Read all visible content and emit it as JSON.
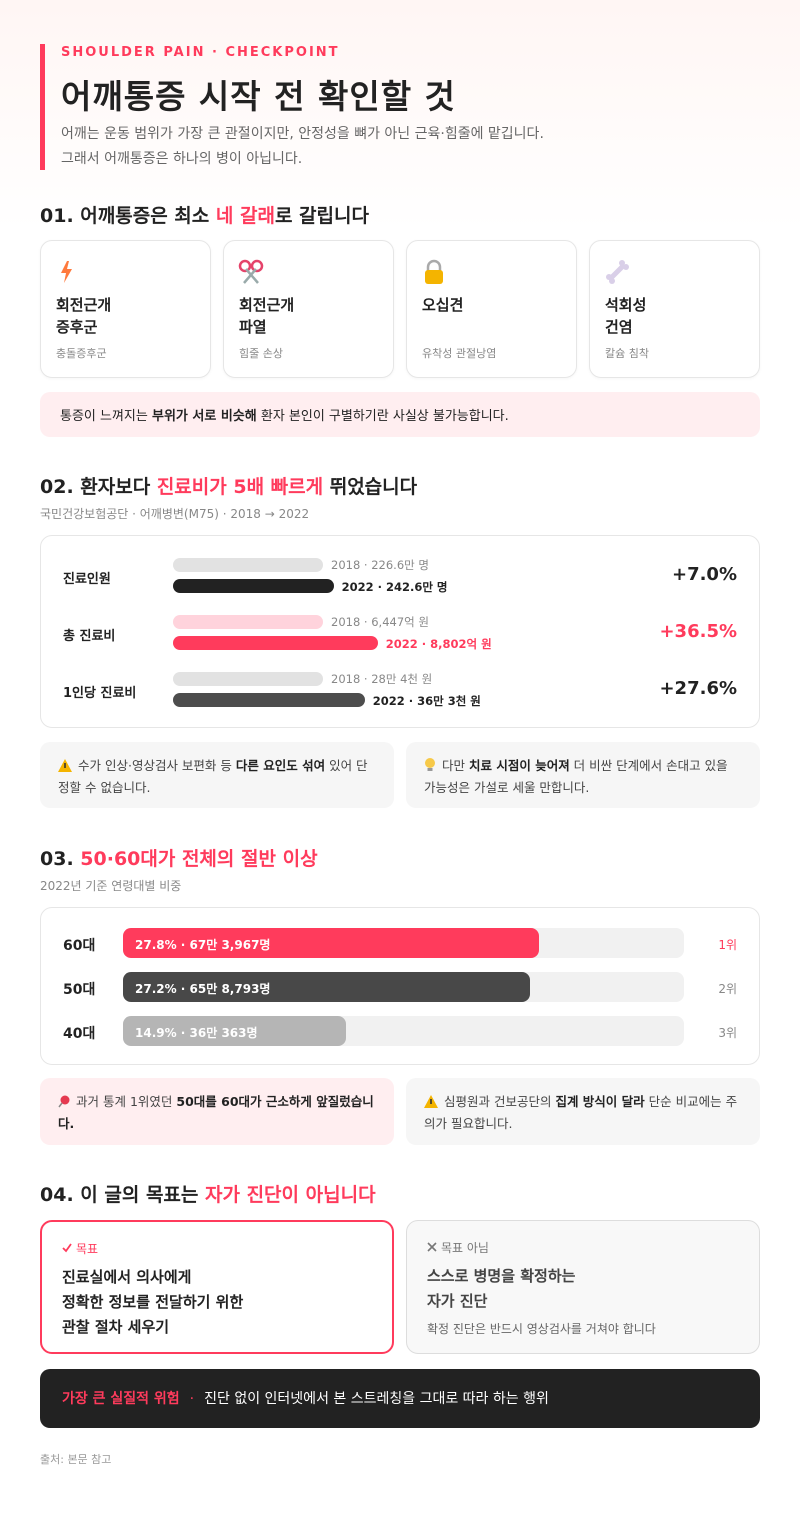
{
  "header": {
    "kicker": "SHOULDER PAIN · CHECKPOINT",
    "title": "어깨통증 시작 전 확인할 것",
    "description": [
      "어깨는 운동 범위가 가장 큰 관절이지만, 안정성을 뼈가 아닌 근육·힘줄에 맡깁니다.",
      "그래서 어깨통증은 하나의 병이 아닙니다."
    ]
  },
  "section1": {
    "heading": [
      "01. 어깨통증은 최소 ",
      "네 갈래",
      "로 갈립니다"
    ],
    "cards": [
      {
        "title": [
          "회전근개",
          "증후군"
        ],
        "sub": "충돌증후군"
      },
      {
        "title": [
          "회전근개",
          "파열"
        ],
        "sub": "힘줄 손상"
      },
      {
        "title": [
          "오십견"
        ],
        "sub": "유착성 관절낭염"
      },
      {
        "title": [
          "석회성",
          "건염"
        ],
        "sub": "칼슘 침착"
      }
    ],
    "note": [
      "통증이 느껴지는 ",
      "부위가 서로 비슷해",
      " 환자 본인이 구별하기란 사실상 불가능합니다."
    ]
  },
  "section2": {
    "heading": [
      "02. 환자보다 ",
      "진료비가 5배 빠르게",
      " 뛰었습니다"
    ],
    "source": "국민건강보험공단 · 어깨병변(M75) · 2018 → 2022",
    "rows": [
      {
        "label": "진료인원",
        "before": {
          "value": 226.6,
          "label": "2018 · 226.6만 명"
        },
        "after": {
          "value": 242.6,
          "label": "2022 · 242.6만 명"
        },
        "change": "+7.0%",
        "colors": [
          "#e2e2e2",
          "#222222"
        ]
      },
      {
        "label": "총 진료비",
        "before": {
          "value": 6447,
          "label": "2018 · 6,447억 원"
        },
        "after": {
          "value": 8802,
          "label": "2022 · 8,802억 원"
        },
        "change": "+36.5%",
        "colors": [
          "#ffd3dc",
          "#ff3b5c"
        ]
      },
      {
        "label": "1인당 진료비",
        "before": {
          "value": 28.4,
          "label": "2018 · 28만 4천 원"
        },
        "after": {
          "value": 36.3,
          "label": "2022 · 36만 3천 원"
        },
        "change": "+27.6%",
        "colors": [
          "#e2e2e2",
          "#4d4d4d"
        ]
      }
    ],
    "notes": [
      [
        "수가 인상·영상검사 보편화 등 ",
        "다른 요인도 섞여",
        " 있어 단정할 수 없습니다."
      ],
      [
        "다만 ",
        "치료 시점이 늦어져",
        " 더 비싼 단계에서 손대고 있을 가능성은 가설로 세울 만합니다."
      ]
    ]
  },
  "section3": {
    "heading": [
      "03. ",
      "50·60대가 전체의 절반 이상"
    ],
    "source": "2022년 기준 연령대별 비중",
    "rows": [
      {
        "label": "60대",
        "value": 27.8,
        "value_label": "27.8% · 67만 3,967명",
        "rank": "1위",
        "color": "#ff3b5c"
      },
      {
        "label": "50대",
        "value": 27.2,
        "value_label": "27.2% · 65만 8,793명",
        "rank": "2위",
        "color": "#484848"
      },
      {
        "label": "40대",
        "value": 14.9,
        "value_label": "14.9% · 36만 363명",
        "rank": "3위",
        "color": "#b5b5b5"
      }
    ],
    "notes": [
      [
        "과거 통계 1위였던 ",
        "50대를 60대가 근소하게 앞질렀습니다."
      ],
      [
        "심평원과 건보공단의 ",
        "집계 방식이 달라",
        " 단순 비교에는 주의가 필요합니다."
      ]
    ]
  },
  "section4": {
    "heading": [
      "04. 이 글의 목표는 ",
      "자가 진단이 아닙니다"
    ],
    "goal": {
      "tag": "목표",
      "lines": [
        "진료실에서 의사에게",
        "정확한 정보를 전달하기 위한",
        "관찰 절차 세우기"
      ]
    },
    "not_goal": {
      "tag": "목표 아님",
      "lines": [
        "스스로 병명을 확정하는",
        "자가 진단"
      ],
      "sub": "확정 진단은 반드시 영상검사를 거쳐야 합니다"
    },
    "banner": {
      "label": "가장 큰 실질적 위험",
      "separator": "·",
      "text": "진단 없이 인터넷에서 본 스트레칭을 그대로 따라 하는 행위"
    }
  },
  "footer": "출처: 본문 참고"
}
